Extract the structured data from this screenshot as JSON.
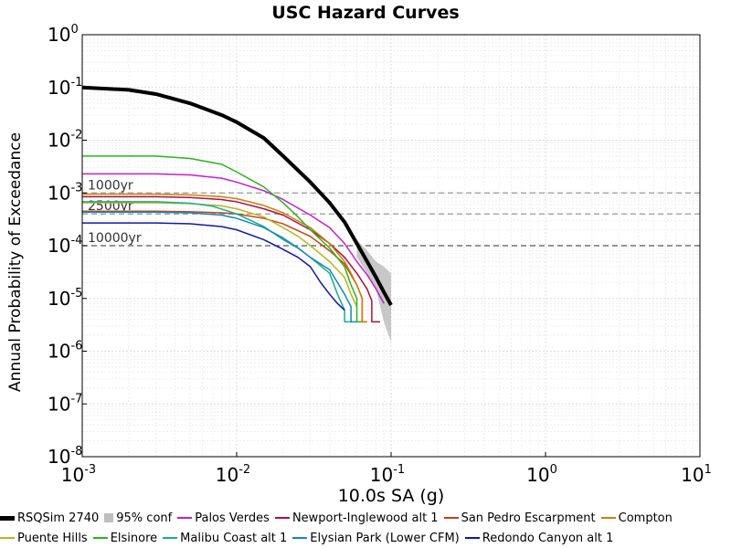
{
  "chart_data": {
    "type": "line",
    "title": "USC Hazard Curves",
    "xlabel": "10.0s SA (g)",
    "ylabel": "Annual Probability of Exceedance",
    "x_scale": "log",
    "y_scale": "log",
    "xlim": [
      0.001,
      10
    ],
    "ylim": [
      1e-08,
      1
    ],
    "grid": true,
    "legend_position": "bottom",
    "x_ticks": [
      {
        "base": "10",
        "exp": "-3"
      },
      {
        "base": "10",
        "exp": "-2"
      },
      {
        "base": "10",
        "exp": "-1"
      },
      {
        "base": "10",
        "exp": "0"
      },
      {
        "base": "10",
        "exp": "1"
      }
    ],
    "y_ticks": [
      {
        "base": "10",
        "exp": "0"
      },
      {
        "base": "10",
        "exp": "-1"
      },
      {
        "base": "10",
        "exp": "-2"
      },
      {
        "base": "10",
        "exp": "-3"
      },
      {
        "base": "10",
        "exp": "-4"
      },
      {
        "base": "10",
        "exp": "-5"
      },
      {
        "base": "10",
        "exp": "-6"
      },
      {
        "base": "10",
        "exp": "-7"
      },
      {
        "base": "10",
        "exp": "-8"
      }
    ],
    "reference_lines": [
      {
        "label": "1000yr",
        "y": 0.001
      },
      {
        "label": "2500yr",
        "y": 0.0004
      },
      {
        "label": "10000yr",
        "y": 0.0001
      }
    ],
    "confidence_band": {
      "name": "95% conf",
      "color": "#bebebe",
      "x": [
        0.06,
        0.07,
        0.08,
        0.09,
        0.1
      ],
      "upper": [
        0.00013,
        8e-05,
        5e-05,
        4e-05,
        3e-05
      ],
      "lower": [
        6e-05,
        3e-05,
        1.5e-05,
        3.5e-06,
        1.5e-06
      ]
    },
    "series": [
      {
        "name": "RSQSim 2740",
        "color": "#000000",
        "width": 4,
        "x": [
          0.001,
          0.002,
          0.003,
          0.005,
          0.008,
          0.01,
          0.015,
          0.02,
          0.03,
          0.04,
          0.05,
          0.06,
          0.07,
          0.08,
          0.09,
          0.1
        ],
        "y": [
          0.1,
          0.09,
          0.075,
          0.05,
          0.03,
          0.022,
          0.011,
          0.005,
          0.0016,
          0.00065,
          0.00028,
          0.00011,
          5e-05,
          2.5e-05,
          1.3e-05,
          7.5e-06
        ]
      },
      {
        "name": "Palos Verdes",
        "color": "#c71fc7",
        "width": 1.5,
        "x": [
          0.001,
          0.003,
          0.005,
          0.008,
          0.01,
          0.015,
          0.02,
          0.03,
          0.04,
          0.05,
          0.06,
          0.07,
          0.08,
          0.09
        ],
        "y": [
          0.0023,
          0.0023,
          0.0022,
          0.0019,
          0.0016,
          0.0011,
          0.00075,
          0.00038,
          0.00022,
          0.00011,
          5e-05,
          2.8e-05,
          1.5e-05,
          8e-06
        ]
      },
      {
        "name": "Newport-Inglewood alt 1",
        "color": "#b0103c",
        "width": 1.5,
        "x": [
          0.001,
          0.003,
          0.005,
          0.008,
          0.01,
          0.015,
          0.02,
          0.03,
          0.04,
          0.05,
          0.06,
          0.07,
          0.075,
          0.075,
          0.085
        ],
        "y": [
          0.00085,
          0.00085,
          0.00082,
          0.00075,
          0.00068,
          0.0005,
          0.00038,
          0.0002,
          0.00011,
          6e-05,
          3e-05,
          1.5e-05,
          9e-06,
          3.6e-06,
          3.6e-06
        ]
      },
      {
        "name": "San Pedro Escarpment",
        "color": "#c2431b",
        "width": 1.5,
        "x": [
          0.001,
          0.003,
          0.005,
          0.008,
          0.01,
          0.015,
          0.02,
          0.03,
          0.04,
          0.05,
          0.06,
          0.065,
          0.065,
          0.07
        ],
        "y": [
          0.00045,
          0.00045,
          0.00044,
          0.00042,
          0.0004,
          0.00033,
          0.00026,
          0.00015,
          8e-05,
          4.5e-05,
          1.8e-05,
          1e-05,
          3.6e-06,
          3.6e-06
        ]
      },
      {
        "name": "Compton",
        "color": "#c8810c",
        "width": 1.5,
        "x": [
          0.001,
          0.003,
          0.005,
          0.008,
          0.01,
          0.015,
          0.02,
          0.03,
          0.04,
          0.05,
          0.055,
          0.06,
          0.065,
          0.065,
          0.07
        ],
        "y": [
          0.00095,
          0.00095,
          0.00092,
          0.00085,
          0.00078,
          0.00058,
          0.00042,
          0.00022,
          0.00011,
          5e-05,
          3e-05,
          1.8e-05,
          1e-05,
          3.6e-06,
          3.6e-06
        ]
      },
      {
        "name": "Puente Hills",
        "color": "#b9b61a",
        "width": 1.5,
        "x": [
          0.001,
          0.003,
          0.005,
          0.008,
          0.01,
          0.015,
          0.02,
          0.025,
          0.03,
          0.04,
          0.05,
          0.055,
          0.06
        ],
        "y": [
          0.00065,
          0.00065,
          0.00063,
          0.00057,
          0.0005,
          0.00035,
          0.00022,
          0.00015,
          0.0001,
          5e-05,
          2.5e-05,
          1.2e-05,
          7e-06
        ]
      },
      {
        "name": "Elsinore",
        "color": "#2ab51e",
        "width": 1.5,
        "x": [
          0.001,
          0.003,
          0.005,
          0.008,
          0.01,
          0.015,
          0.02,
          0.025,
          0.03,
          0.04,
          0.05,
          0.055,
          0.06,
          0.06,
          0.065
        ],
        "y": [
          0.005,
          0.005,
          0.0045,
          0.0035,
          0.0025,
          0.0013,
          0.00065,
          0.00035,
          0.0002,
          9e-05,
          4e-05,
          1.8e-05,
          1e-05,
          3.6e-06,
          3.6e-06
        ]
      },
      {
        "name": "Malibu Coast alt 1",
        "color": "#17b08b",
        "width": 1.5,
        "x": [
          0.001,
          0.003,
          0.005,
          0.007,
          0.01,
          0.015,
          0.02,
          0.025,
          0.03,
          0.04,
          0.045,
          0.05,
          0.05,
          0.055
        ],
        "y": [
          0.00068,
          0.00068,
          0.00064,
          0.00056,
          0.0004,
          0.00023,
          0.00013,
          9e-05,
          6e-05,
          3e-05,
          1.2e-05,
          6e-06,
          3.6e-06,
          3.6e-06
        ]
      },
      {
        "name": "Elysian Park (Lower CFM)",
        "color": "#1687ba",
        "width": 1.5,
        "x": [
          0.001,
          0.003,
          0.005,
          0.008,
          0.01,
          0.015,
          0.02,
          0.025,
          0.03,
          0.04,
          0.045,
          0.05,
          0.055,
          0.055,
          0.06
        ],
        "y": [
          0.00043,
          0.00043,
          0.00042,
          0.00038,
          0.00033,
          0.00022,
          0.00014,
          9e-05,
          6e-05,
          3.5e-05,
          2e-05,
          1.2e-05,
          7e-06,
          3.6e-06,
          3.6e-06
        ]
      },
      {
        "name": "Redondo Canyon alt 1",
        "color": "#1017a6",
        "width": 1.5,
        "x": [
          0.001,
          0.003,
          0.005,
          0.008,
          0.01,
          0.015,
          0.02,
          0.025,
          0.03,
          0.035,
          0.04,
          0.045,
          0.05
        ],
        "y": [
          0.00027,
          0.00027,
          0.00026,
          0.00023,
          0.0002,
          0.00013,
          8.5e-05,
          6e-05,
          4e-05,
          2e-05,
          1.2e-05,
          8e-06,
          6e-06
        ]
      }
    ]
  }
}
